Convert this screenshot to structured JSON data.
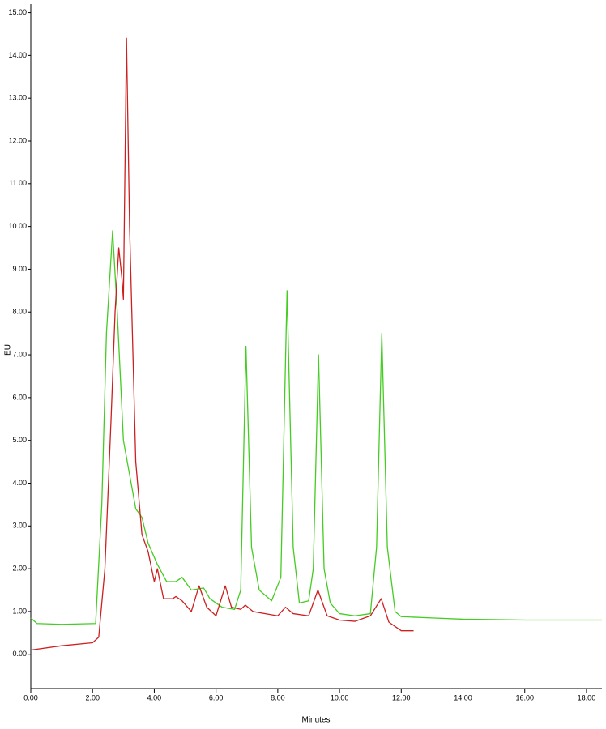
{
  "chart_data": {
    "type": "line",
    "x_label": "Minutes",
    "y_label": "EU",
    "xlim": [
      0,
      18.5
    ],
    "ylim": [
      -0.8,
      15.2
    ],
    "xticks": [
      {
        "value": 0,
        "label": "0.00"
      },
      {
        "value": 2,
        "label": "2.00"
      },
      {
        "value": 4,
        "label": "4.00"
      },
      {
        "value": 6,
        "label": "6.00"
      },
      {
        "value": 8,
        "label": "8.00"
      },
      {
        "value": 10,
        "label": "10.00"
      },
      {
        "value": 12,
        "label": "12.00"
      },
      {
        "value": 14,
        "label": "14.00"
      },
      {
        "value": 16,
        "label": "16.00"
      },
      {
        "value": 18,
        "label": "18.00"
      }
    ],
    "yticks": [
      {
        "value": 0,
        "label": "0.00"
      },
      {
        "value": 1,
        "label": "1.00"
      },
      {
        "value": 2,
        "label": "2.00"
      },
      {
        "value": 3,
        "label": "3.00"
      },
      {
        "value": 4,
        "label": "4.00"
      },
      {
        "value": 5,
        "label": "5.00"
      },
      {
        "value": 6,
        "label": "6.00"
      },
      {
        "value": 7,
        "label": "7.00"
      },
      {
        "value": 8,
        "label": "8.00"
      },
      {
        "value": 9,
        "label": "9.00"
      },
      {
        "value": 10,
        "label": "10.00"
      },
      {
        "value": 11,
        "label": "11.00"
      },
      {
        "value": 12,
        "label": "12.00"
      },
      {
        "value": 13,
        "label": "13.00"
      },
      {
        "value": 14,
        "label": "14.00"
      },
      {
        "value": 15,
        "label": "15.00"
      }
    ],
    "series": [
      {
        "color": "#44cc22",
        "x": [
          0,
          0.2,
          1.0,
          2.1,
          2.3,
          2.45,
          2.65,
          2.8,
          3.0,
          3.4,
          3.6,
          3.8,
          4.1,
          4.4,
          4.7,
          4.9,
          5.2,
          5.6,
          5.8,
          6.2,
          6.6,
          6.8,
          6.97,
          7.15,
          7.4,
          7.8,
          8.1,
          8.3,
          8.5,
          8.7,
          9.0,
          9.15,
          9.32,
          9.5,
          9.7,
          10.0,
          10.5,
          11.0,
          11.2,
          11.37,
          11.55,
          11.8,
          12.0,
          13.0,
          14.0,
          16.0,
          18.5
        ],
        "values": [
          0.85,
          0.72,
          0.7,
          0.72,
          3.5,
          7.5,
          9.9,
          8.0,
          5.0,
          3.4,
          3.2,
          2.6,
          2.1,
          1.7,
          1.7,
          1.8,
          1.5,
          1.55,
          1.3,
          1.1,
          1.05,
          1.5,
          7.2,
          2.5,
          1.5,
          1.25,
          1.8,
          8.5,
          2.5,
          1.2,
          1.25,
          2.0,
          7.0,
          2.0,
          1.2,
          0.95,
          0.9,
          0.95,
          2.5,
          7.5,
          2.5,
          1.0,
          0.88,
          0.85,
          0.82,
          0.8,
          0.8
        ]
      },
      {
        "color": "#cc2020",
        "x": [
          0,
          1.0,
          2.0,
          2.2,
          2.4,
          2.6,
          2.73,
          2.85,
          2.95,
          3.0,
          3.1,
          3.2,
          3.4,
          3.6,
          3.8,
          4.0,
          4.1,
          4.3,
          4.6,
          4.7,
          4.9,
          5.2,
          5.45,
          5.7,
          6.0,
          6.3,
          6.5,
          6.8,
          6.95,
          7.2,
          7.6,
          8.0,
          8.25,
          8.5,
          9.0,
          9.3,
          9.6,
          10.0,
          10.5,
          11.0,
          11.35,
          11.6,
          12.0,
          12.4
        ],
        "values": [
          0.1,
          0.2,
          0.27,
          0.4,
          2.0,
          5.5,
          8.0,
          9.5,
          8.8,
          8.3,
          14.4,
          10.0,
          4.5,
          2.8,
          2.4,
          1.7,
          2.0,
          1.3,
          1.3,
          1.35,
          1.25,
          1.0,
          1.6,
          1.1,
          0.9,
          1.6,
          1.1,
          1.05,
          1.15,
          1.0,
          0.95,
          0.9,
          1.1,
          0.95,
          0.9,
          1.5,
          0.9,
          0.8,
          0.77,
          0.9,
          1.3,
          0.75,
          0.55,
          0.55
        ]
      }
    ]
  }
}
